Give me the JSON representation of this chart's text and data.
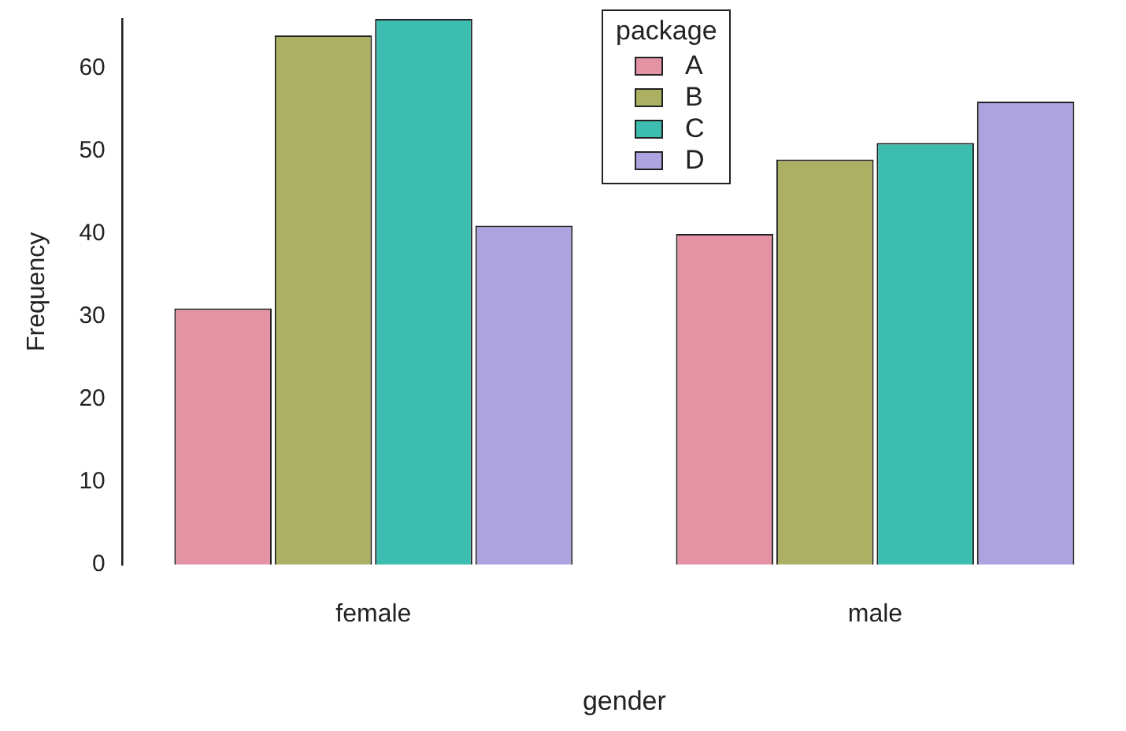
{
  "chart_data": {
    "type": "bar",
    "xlabel": "gender",
    "ylabel": "Frequency",
    "legend_title": "package",
    "categories": [
      "female",
      "male"
    ],
    "series": [
      {
        "name": "A",
        "color": "#e393a4",
        "values": [
          31,
          40
        ]
      },
      {
        "name": "B",
        "color": "#acb063",
        "values": [
          64,
          49
        ]
      },
      {
        "name": "C",
        "color": "#3cbdb0",
        "values": [
          66,
          51
        ]
      },
      {
        "name": "D",
        "color": "#ada3e0",
        "values": [
          41,
          56
        ]
      }
    ],
    "ylim": [
      0,
      66
    ],
    "yticks": [
      0,
      10,
      20,
      30,
      40,
      50,
      60
    ],
    "grid": false,
    "legend": "top"
  }
}
